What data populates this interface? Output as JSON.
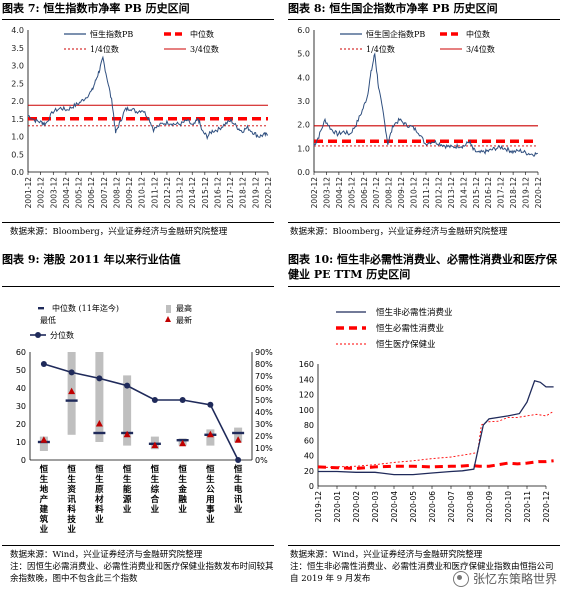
{
  "panels": [
    {
      "title": "图表 7: 恒生指数市净率 PB 历史区间",
      "source": "数据来源：Bloomberg，兴业证券经济与金融研究院整理"
    },
    {
      "title": "图表 8: 恒生国企指数市净率 PB 历史区间",
      "source": "数据来源：Bloomberg，兴业证券经济与金融研究院整理"
    },
    {
      "title": "图表 9: 港股 2011 年以来行业估值",
      "source": "数据来源：Wind，兴业证券经济与金融研究院整理",
      "note": "注：因恒生必需消费业、必需性消费业和医疗保健业指数发布时间较其余指数晚，图中不包含此三个指数"
    },
    {
      "title": "图表 10: 恒生非必需性消费业、必需性消费业和医疗保健业 PE TTM 历史区间",
      "source": "数据来源：Wind，兴业证券经济与金融研究院整理",
      "note": "注：恒生非必需性消费业、必需性消费业和医疗保健业指数由恒指公司自 2019 年 9 月发布"
    }
  ],
  "watermark": "张忆东策略世界",
  "chart_data": [
    {
      "type": "line",
      "title": "恒生指数市净率 PB 历史区间",
      "x_ticks": [
        "2001-12",
        "2002-12",
        "2003-12",
        "2004-12",
        "2005-12",
        "2006-12",
        "2007-12",
        "2008-12",
        "2009-12",
        "2010-12",
        "2011-12",
        "2012-12",
        "2013-12",
        "2014-12",
        "2015-12",
        "2016-12",
        "2017-12",
        "2018-12",
        "2019-12",
        "2020-12"
      ],
      "ylim": [
        0,
        4.0
      ],
      "y_ticks": [
        "0.0",
        "0.5",
        "1.0",
        "1.5",
        "2.0",
        "2.5",
        "3.0",
        "3.5",
        "4.0"
      ],
      "legend": [
        "恒生指数PB",
        "中位数",
        "1/4位数",
        "3/4位数"
      ],
      "colors": {
        "series": "#2f4f7f",
        "median": "#ff0000",
        "quartile": "#cc0000"
      },
      "median": 1.5,
      "q1": 1.3,
      "q3": 1.88,
      "series": [
        {
          "name": "恒生指数PB",
          "x": [
            2001.9,
            2002.5,
            2003.0,
            2003.3,
            2003.9,
            2004.5,
            2005.0,
            2005.5,
            2006.0,
            2006.5,
            2007.0,
            2007.3,
            2007.6,
            2007.85,
            2008.2,
            2008.6,
            2008.85,
            2009.2,
            2009.6,
            2010.0,
            2010.5,
            2011.0,
            2011.5,
            2011.85,
            2012.5,
            2013.0,
            2013.5,
            2014.0,
            2014.5,
            2015.0,
            2015.4,
            2015.7,
            2016.1,
            2016.5,
            2017.0,
            2017.5,
            2018.0,
            2018.5,
            2018.85,
            2019.3,
            2019.8,
            2020.2,
            2020.6,
            2020.9
          ],
          "y": [
            1.6,
            1.45,
            1.4,
            1.35,
            1.7,
            1.8,
            1.75,
            1.85,
            1.95,
            2.1,
            2.3,
            2.6,
            2.9,
            3.2,
            2.6,
            1.9,
            1.1,
            1.4,
            1.75,
            1.8,
            1.7,
            1.75,
            1.5,
            1.2,
            1.35,
            1.4,
            1.35,
            1.35,
            1.45,
            1.3,
            1.5,
            1.15,
            1.0,
            1.15,
            1.2,
            1.35,
            1.45,
            1.25,
            1.15,
            1.25,
            1.1,
            1.0,
            1.05,
            1.05
          ]
        }
      ]
    },
    {
      "type": "line",
      "title": "恒生国企指数市净率 PB 历史区间",
      "x_ticks": [
        "2002-12",
        "2003-12",
        "2004-12",
        "2005-12",
        "2006-12",
        "2007-12",
        "2008-12",
        "2009-12",
        "2010-12",
        "2011-12",
        "2012-12",
        "2013-12",
        "2014-12",
        "2015-12",
        "2016-12",
        "2017-12",
        "2018-12",
        "2019-12",
        "2020-12"
      ],
      "ylim": [
        0,
        6.0
      ],
      "y_ticks": [
        "0.0",
        "1.0",
        "2.0",
        "3.0",
        "4.0",
        "5.0",
        "6.0"
      ],
      "legend": [
        "恒生国企指数PB",
        "中位数",
        "1/4位数",
        "3/4位数"
      ],
      "colors": {
        "series": "#2f4f7f",
        "median": "#ff0000",
        "quartile": "#cc0000"
      },
      "median": 1.3,
      "q1": 1.1,
      "q3": 1.95,
      "series": [
        {
          "name": "恒生国企指数PB",
          "x": [
            2002.9,
            2003.3,
            2003.8,
            2004.3,
            2004.8,
            2005.3,
            2005.8,
            2006.3,
            2006.8,
            2007.2,
            2007.5,
            2007.8,
            2008.1,
            2008.5,
            2008.85,
            2009.3,
            2009.8,
            2010.3,
            2010.8,
            2011.3,
            2011.85,
            2012.5,
            2013.0,
            2013.5,
            2014.0,
            2014.5,
            2015.0,
            2015.4,
            2015.7,
            2016.1,
            2016.6,
            2017.0,
            2017.5,
            2018.0,
            2018.5,
            2018.9,
            2019.5,
            2020.0,
            2020.5,
            2020.9
          ],
          "y": [
            1.1,
            1.5,
            2.2,
            1.8,
            1.6,
            1.7,
            1.6,
            2.0,
            2.6,
            3.2,
            4.2,
            5.0,
            3.6,
            2.4,
            1.2,
            2.0,
            2.2,
            2.0,
            1.9,
            1.7,
            1.2,
            1.3,
            1.2,
            1.1,
            1.05,
            1.1,
            1.1,
            1.3,
            0.95,
            0.8,
            0.85,
            0.9,
            1.0,
            1.05,
            0.95,
            0.85,
            0.9,
            0.8,
            0.75,
            0.78
          ]
        }
      ]
    },
    {
      "type": "bar",
      "title": "港股 2011 年以来行业估值",
      "categories": [
        "恒生地产建筑业",
        "恒生资讯科技业",
        "恒生原材料业",
        "恒生能源业",
        "恒生综合业",
        "恒生金融业",
        "恒生公用事业",
        "恒生电讯业"
      ],
      "ylim": [
        0,
        60
      ],
      "y_ticks": [
        "0",
        "10",
        "20",
        "30",
        "40",
        "50",
        "60"
      ],
      "y2lim": [
        0,
        90
      ],
      "y2_ticks": [
        "0%",
        "10%",
        "20%",
        "30%",
        "40%",
        "50%",
        "60%",
        "70%",
        "80%",
        "90%"
      ],
      "legend": [
        "中位数 (11年迄今)",
        "最高",
        "最低",
        "最新",
        "分位数"
      ],
      "colors": {
        "range": "#bfbfbf",
        "median": "#1f2a5a",
        "latest": "#c00000",
        "percentile": "#1f2a5a"
      },
      "high": [
        13,
        64,
        62,
        47,
        13,
        12,
        17,
        18
      ],
      "low": [
        5,
        14,
        10,
        8,
        6,
        8,
        8,
        10
      ],
      "median": [
        10,
        33,
        15,
        15,
        9,
        11,
        14,
        15
      ],
      "latest": [
        11,
        38,
        20,
        14,
        8,
        9,
        14,
        11
      ],
      "percentile": [
        80,
        73,
        68,
        62,
        50,
        50,
        46,
        0
      ]
    },
    {
      "type": "line",
      "title": "恒生非必需性消费业、必需性消费业和医疗保健业 PE TTM 历史区间",
      "x_ticks": [
        "2019-12",
        "2020-01",
        "2020-02",
        "2020-03",
        "2020-04",
        "2020-05",
        "2020-06",
        "2020-07",
        "2020-08",
        "2020-09",
        "2020-10",
        "2020-11",
        "2020-12"
      ],
      "ylim": [
        0,
        160
      ],
      "y_ticks": [
        "0",
        "20",
        "40",
        "60",
        "80",
        "100",
        "120",
        "140",
        "160"
      ],
      "legend": [
        "恒生非必需性消费业",
        "恒生必需性消费业",
        "恒生医疗保健业"
      ],
      "colors": {
        "s1": "#1f2a5a",
        "s2": "#ff0000",
        "s3": "#ff0000"
      },
      "series": [
        {
          "name": "恒生非必需性消费业",
          "x": [
            0,
            1,
            2,
            3,
            4,
            5,
            6,
            7,
            7.6,
            8.2,
            8.7,
            9,
            9.5,
            10,
            10.6,
            11,
            11.4,
            11.7,
            12,
            12.4
          ],
          "y": [
            19,
            19,
            18,
            18,
            15,
            15,
            17,
            19,
            20,
            22,
            80,
            88,
            90,
            92,
            95,
            110,
            138,
            136,
            130,
            130
          ]
        },
        {
          "name": "恒生必需性消费业",
          "x": [
            0,
            1,
            2,
            3,
            4,
            5,
            6,
            7,
            7.5,
            8,
            8.5,
            9,
            9.5,
            10,
            10.5,
            11,
            11.6,
            12,
            12.4
          ],
          "y": [
            25,
            24,
            23,
            25,
            26,
            26,
            25,
            26,
            26,
            27,
            26,
            26,
            28,
            30,
            29,
            30,
            32,
            32,
            33
          ]
        },
        {
          "name": "恒生医疗保健业",
          "x": [
            0,
            1,
            2,
            3,
            4,
            4.5,
            5,
            6,
            7,
            7.5,
            8,
            8.4,
            8.6,
            8.9,
            9.5,
            10,
            10.5,
            11,
            11.5,
            12,
            12.4
          ],
          "y": [
            24,
            25,
            26,
            28,
            31,
            32,
            33,
            36,
            38,
            40,
            42,
            44,
            80,
            84,
            85,
            90,
            90,
            92,
            94,
            92,
            98
          ]
        }
      ]
    }
  ]
}
